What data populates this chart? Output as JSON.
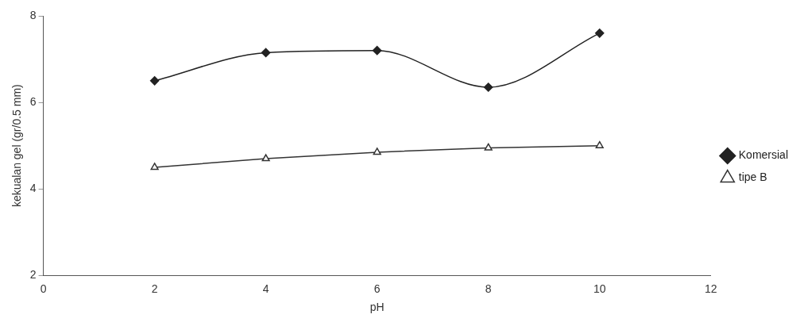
{
  "chart_data": {
    "type": "line",
    "xlabel": "pH",
    "ylabel": "kekualan gel (gr/0.5 mm)",
    "x": [
      2,
      4,
      6,
      8,
      10
    ],
    "series": [
      {
        "name": "Komersial",
        "color": "#222222",
        "values": [
          6.5,
          7.15,
          7.2,
          6.35,
          7.6
        ],
        "marker": "diamond"
      },
      {
        "name": "tipe B",
        "color": "#333333",
        "values": [
          4.5,
          4.7,
          4.85,
          4.95,
          5.0
        ],
        "marker": "triangle"
      }
    ],
    "xlim": [
      0,
      12
    ],
    "xticks": [
      0,
      2,
      4,
      6,
      8,
      10,
      12
    ],
    "ylim": [
      2,
      8
    ],
    "yticks": [
      2,
      4,
      6,
      8
    ],
    "grid": false,
    "legend": "right",
    "line_style": "solid"
  }
}
